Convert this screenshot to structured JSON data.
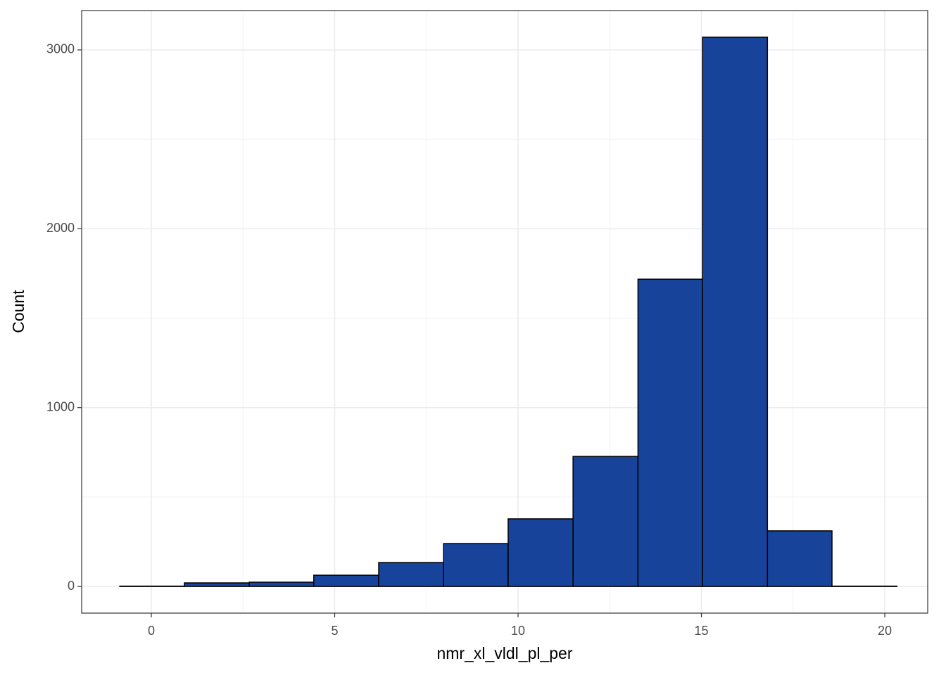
{
  "chart_data": {
    "type": "histogram",
    "xlabel": "nmr_xl_vldl_pl_per",
    "ylabel": "Count",
    "bins": [
      -0.86,
      0.9,
      2.67,
      4.43,
      6.2,
      7.97,
      9.73,
      11.5,
      13.27,
      15.03,
      16.8,
      18.56,
      20.33
    ],
    "values": [
      2,
      20,
      24,
      63,
      134,
      240,
      378,
      727,
      1718,
      3071,
      311,
      2
    ],
    "color": "#17439b",
    "edgecolor": "#000000",
    "xlim": [
      -1.9,
      21.17
    ],
    "ylim": [
      -149,
      3220
    ],
    "xticks": [
      0,
      5,
      10,
      15,
      20
    ],
    "yticks": [
      0,
      1000,
      2000,
      3000
    ],
    "xminor": [
      2.5,
      7.5,
      12.5,
      17.5
    ],
    "yminor": [
      500,
      1500,
      2500
    ],
    "grid": true
  }
}
